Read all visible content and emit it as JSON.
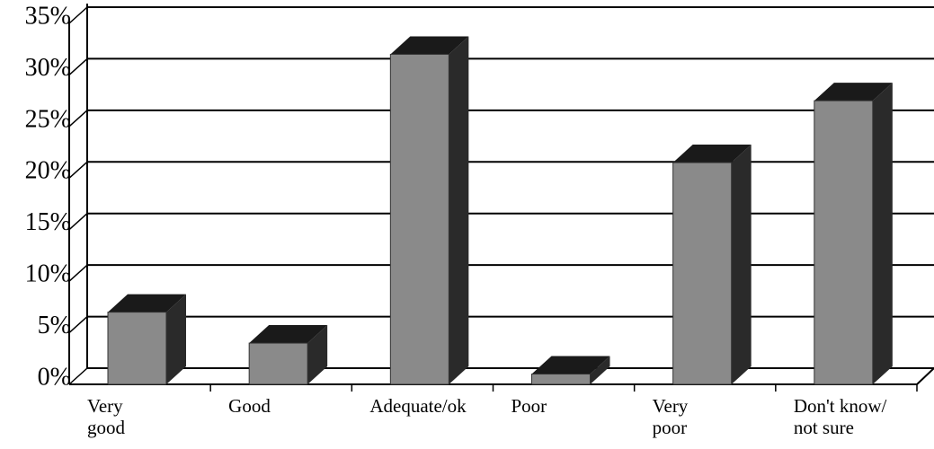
{
  "chart_data": {
    "type": "bar3d",
    "categories": [
      "Very\ngood",
      "Good",
      "Adequate/ok",
      "Poor",
      "Very\npoor",
      "Don't know/\nnot sure"
    ],
    "values": [
      7,
      4,
      32,
      1,
      21.5,
      27.5
    ],
    "color": "#8a8a8a",
    "ylim": [
      0,
      35
    ],
    "yticks": [
      {
        "value": 0,
        "label": "0%"
      },
      {
        "value": 5,
        "label": "5%"
      },
      {
        "value": 10,
        "label": "10%"
      },
      {
        "value": 15,
        "label": "15%"
      },
      {
        "value": 20,
        "label": "20%"
      },
      {
        "value": 25,
        "label": "25%"
      },
      {
        "value": 30,
        "label": "30%"
      },
      {
        "value": 35,
        "label": "35%"
      }
    ],
    "grid": true
  }
}
